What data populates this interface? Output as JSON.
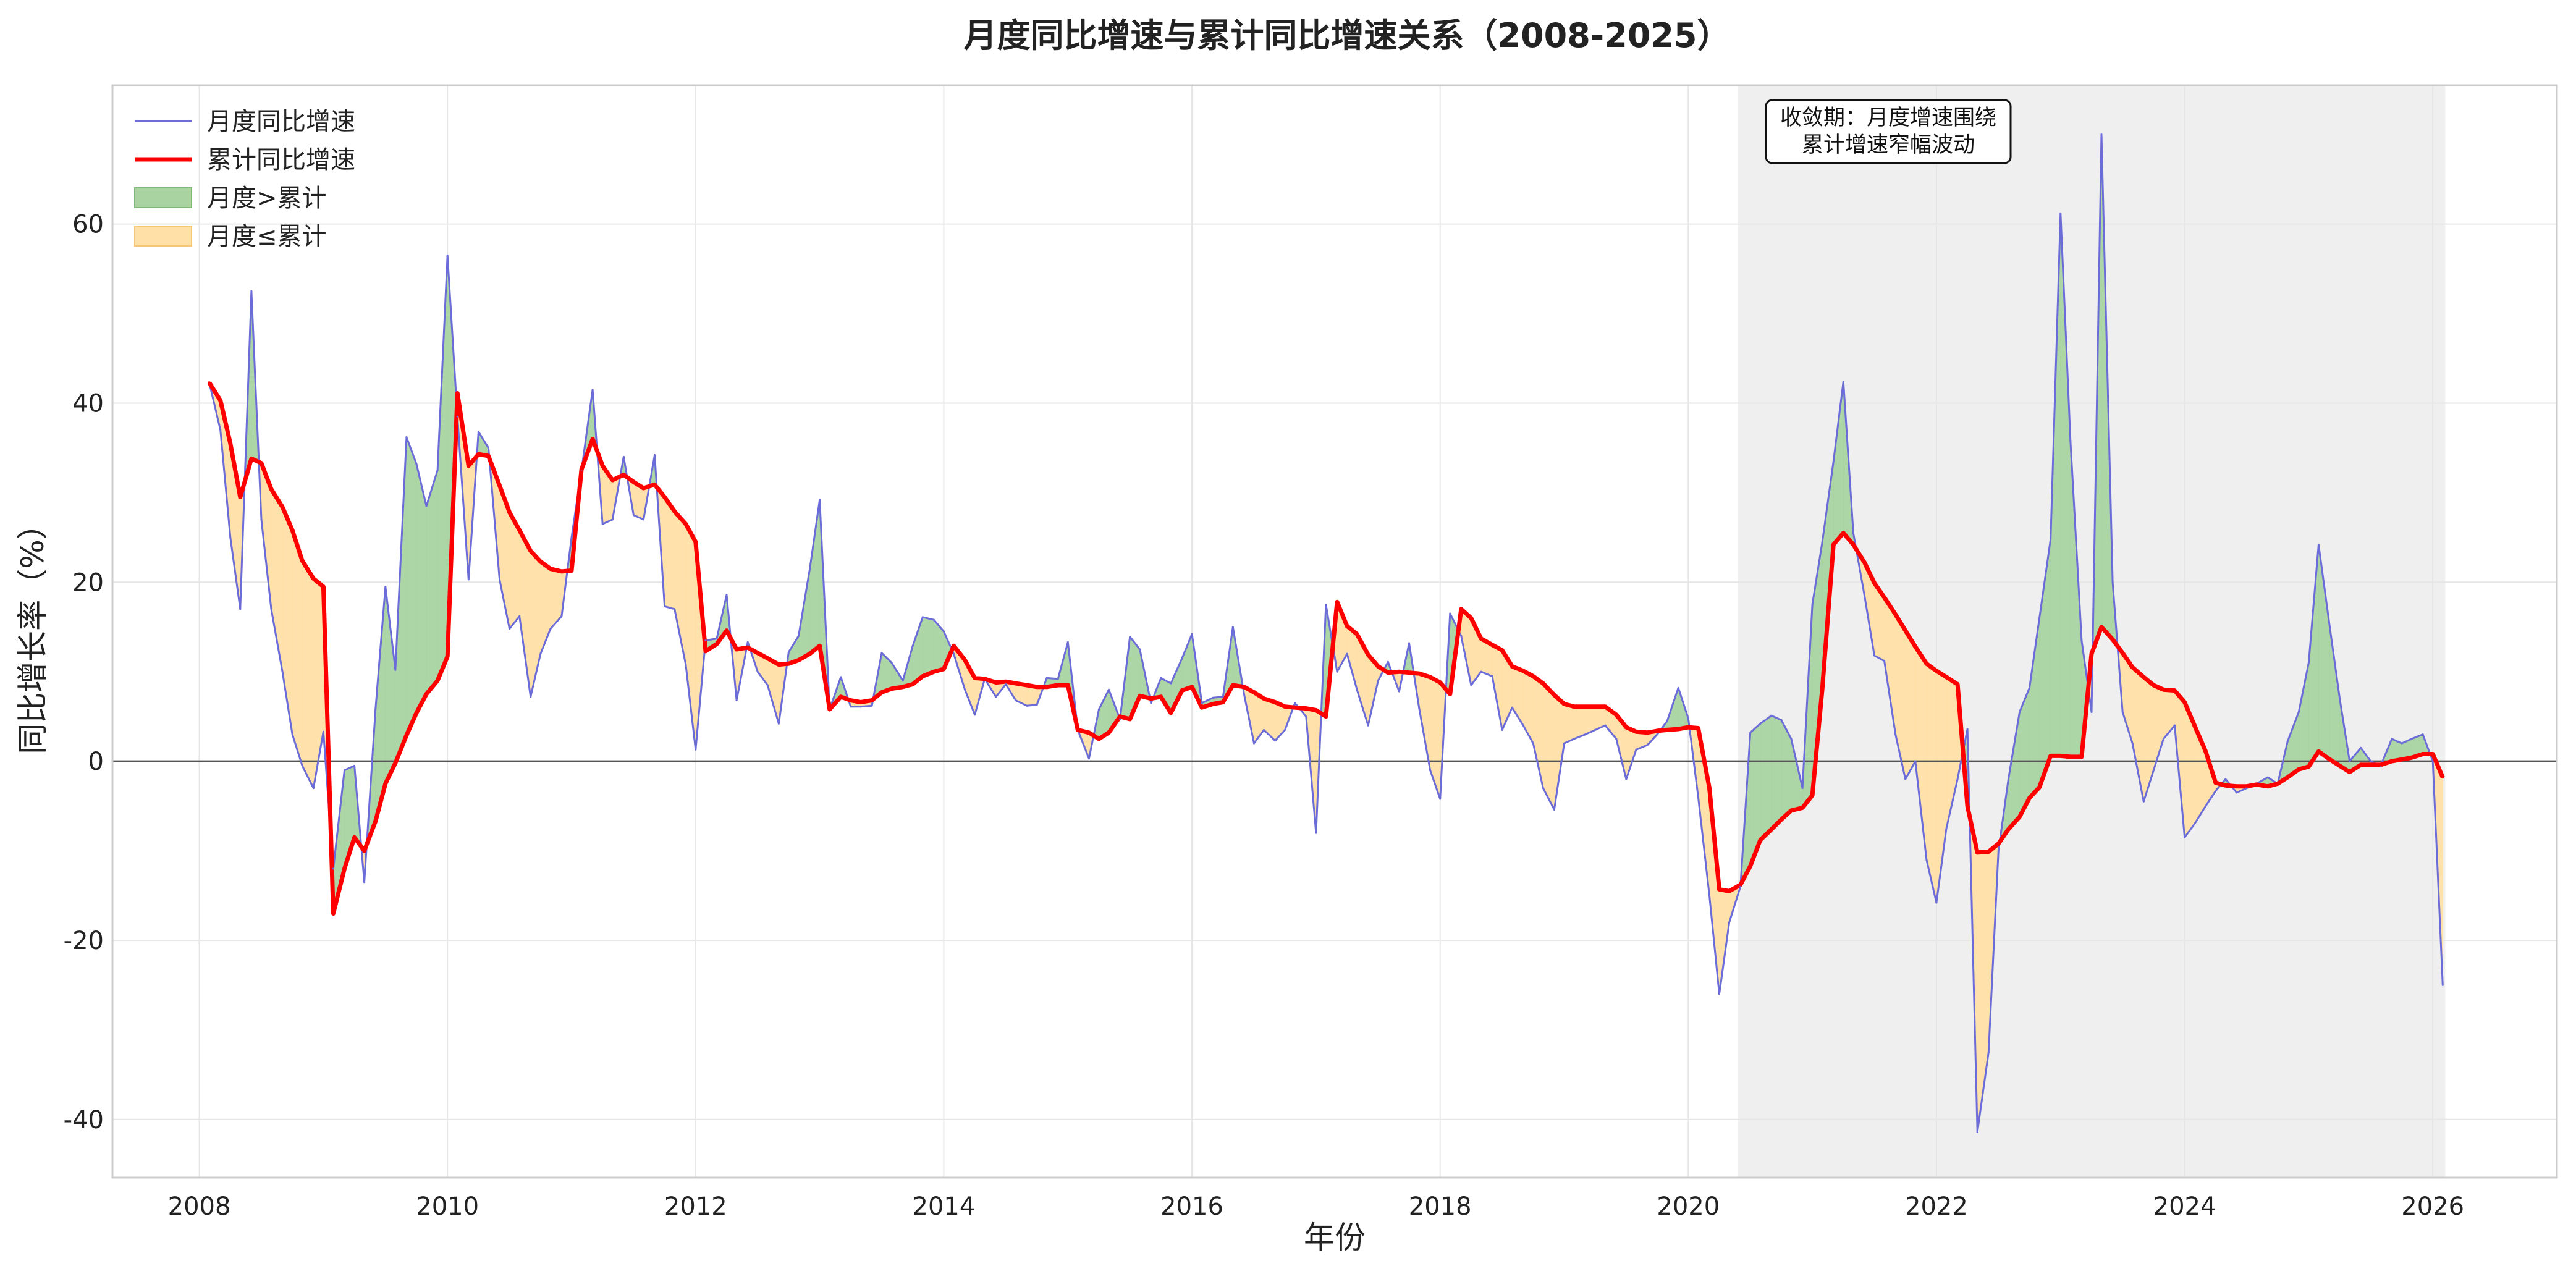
{
  "chart_data": {
    "type": "line",
    "title": "月度同比增速与累计同比增速关系（2008-2025）",
    "xlabel": "年份",
    "ylabel": "同比增长率（%）",
    "xlim": [
      2007.3,
      2027.0
    ],
    "ylim": [
      -46.5,
      75.5
    ],
    "x_ticks": [
      2008,
      2010,
      2012,
      2014,
      2016,
      2018,
      2020,
      2022,
      2024,
      2026
    ],
    "y_ticks": [
      -40,
      -20,
      0,
      20,
      40,
      60
    ],
    "grid": true,
    "legend_position": "top-left",
    "legend": [
      {
        "label": "月度同比增速",
        "kind": "line",
        "color": "#6c6cd9"
      },
      {
        "label": "累计同比增速",
        "kind": "line",
        "color": "#ff0000"
      },
      {
        "label": "月度>累计",
        "kind": "patch",
        "color": "#a9d4a2"
      },
      {
        "label": "月度≤累计",
        "kind": "patch",
        "color": "#ffe0a6"
      }
    ],
    "highlight_span": {
      "x_start": 2020.4,
      "x_end": 2026.1,
      "color": "#efefef"
    },
    "annotation": {
      "lines": [
        "收敛期：月度增速围绕",
        "累计增速窄幅波动"
      ],
      "x": 2023.3,
      "y": 70.5
    },
    "zero_line": 0,
    "series": [
      {
        "name": "月度同比增速",
        "color": "#6c6cd9",
        "x": [
          2008.08,
          2008.17,
          2008.25,
          2008.33,
          2008.42,
          2008.5,
          2008.58,
          2008.67,
          2008.75,
          2008.83,
          2008.92,
          2009.0,
          2009.08,
          2009.17,
          2009.25,
          2009.33,
          2009.42,
          2009.5,
          2009.58,
          2009.67,
          2009.75,
          2009.83,
          2009.92,
          2010.0,
          2010.08,
          2010.17,
          2010.25,
          2010.33,
          2010.42,
          2010.5,
          2010.58,
          2010.67,
          2010.75,
          2010.83,
          2010.92,
          2011.0,
          2011.08,
          2011.17,
          2011.25,
          2011.33,
          2011.42,
          2011.5,
          2011.58,
          2011.67,
          2011.75,
          2011.83,
          2011.92,
          2012.0,
          2012.08,
          2012.17,
          2012.25,
          2012.33,
          2012.42,
          2012.5,
          2012.58,
          2012.67,
          2012.75,
          2012.83,
          2012.92,
          2013.0,
          2013.08,
          2013.17,
          2013.25,
          2013.33,
          2013.42,
          2013.5,
          2013.58,
          2013.67,
          2013.75,
          2013.83,
          2013.92,
          2014.0,
          2014.08,
          2014.17,
          2014.25,
          2014.33,
          2014.42,
          2014.5,
          2014.58,
          2014.67,
          2014.75,
          2014.83,
          2014.92,
          2015.0,
          2015.08,
          2015.17,
          2015.25,
          2015.33,
          2015.42,
          2015.5,
          2015.58,
          2015.67,
          2015.75,
          2015.83,
          2015.92,
          2016.0,
          2016.08,
          2016.17,
          2016.25,
          2016.33,
          2016.42,
          2016.5,
          2016.58,
          2016.67,
          2016.75,
          2016.83,
          2016.92,
          2017.0,
          2017.08,
          2017.17,
          2017.25,
          2017.33,
          2017.42,
          2017.5,
          2017.58,
          2017.67,
          2017.75,
          2017.83,
          2017.92,
          2018.0,
          2018.08,
          2018.17,
          2018.25,
          2018.33,
          2018.42,
          2018.5,
          2018.58,
          2018.67,
          2018.75,
          2018.83,
          2018.92,
          2019.0,
          2019.08,
          2019.17,
          2019.25,
          2019.33,
          2019.42,
          2019.5,
          2019.58,
          2019.67,
          2019.75,
          2019.83,
          2019.92,
          2020.0,
          2020.08,
          2020.17,
          2020.25,
          2020.33,
          2020.42,
          2020.5,
          2020.58,
          2020.67,
          2020.75,
          2020.83,
          2020.92,
          2021.0,
          2021.08,
          2021.17,
          2021.25,
          2021.33,
          2021.42,
          2021.5,
          2021.58,
          2021.67,
          2021.75,
          2021.83,
          2021.92,
          2022.0,
          2022.08,
          2022.17,
          2022.25,
          2022.33,
          2022.42,
          2022.5,
          2022.58,
          2022.67,
          2022.75,
          2022.83,
          2022.92,
          2023.0,
          2023.08,
          2023.17,
          2023.25,
          2023.33,
          2023.42,
          2023.5,
          2023.58,
          2023.67,
          2023.75,
          2023.83,
          2023.92,
          2024.0,
          2024.08,
          2024.17,
          2024.25,
          2024.33,
          2024.42,
          2024.5,
          2024.58,
          2024.67,
          2024.75,
          2024.83,
          2024.92,
          2025.0,
          2025.08,
          2025.17,
          2025.25,
          2025.33,
          2025.42,
          2025.5,
          2025.58,
          2025.67,
          2025.75,
          2025.83,
          2025.92,
          2026.0,
          2026.08
        ],
        "values": [
          42.3,
          37,
          25,
          17,
          52.5,
          27,
          17,
          10,
          3,
          -0.5,
          -3,
          3.3,
          -12,
          -1,
          -0.5,
          -13.5,
          5.8,
          19.5,
          10.2,
          36.2,
          33.2,
          28.5,
          32.5,
          56.5,
          38.5,
          20.3,
          36.8,
          35,
          20.3,
          14.8,
          16.2,
          7.2,
          12,
          14.8,
          16.2,
          25,
          32.5,
          41.5,
          26.5,
          27,
          34,
          27.5,
          27,
          34.2,
          17.3,
          17,
          10.8,
          1.3,
          13.5,
          13.7,
          18.6,
          6.8,
          13.3,
          10,
          8.5,
          4.2,
          12.2,
          14,
          21.5,
          29.2,
          5.8,
          9.4,
          6.1,
          6.1,
          6.2,
          12.1,
          11,
          9,
          12.9,
          16.1,
          15.8,
          14.5,
          12,
          8,
          5.2,
          9.2,
          7.2,
          8.6,
          6.8,
          6.2,
          6.3,
          9.3,
          9.2,
          13.3,
          3.5,
          0.3,
          5.8,
          8,
          4.7,
          13.9,
          12.5,
          6.5,
          9.3,
          8.7,
          11.5,
          14.2,
          6.5,
          7.1,
          7.2,
          15,
          7.5,
          2,
          3.5,
          2.3,
          3.5,
          6.5,
          5,
          -8,
          17.5,
          10,
          12,
          8,
          4,
          9,
          11.1,
          7.8,
          13.2,
          6,
          -1,
          -4.2,
          16.5,
          14,
          8.5,
          10,
          9.5,
          3.5,
          6,
          4,
          2,
          -3,
          -5.4,
          2,
          2.5,
          3,
          3.5,
          4,
          2.5,
          -2,
          1.3,
          1.8,
          3,
          4.5,
          8.2,
          4.8,
          -4,
          -15,
          -26,
          -18,
          -14,
          3.2,
          4.2,
          5.1,
          4.6,
          2.5,
          -3,
          17.5,
          24.5,
          33.5,
          42.4,
          25.5,
          18.5,
          11.8,
          11.2,
          3,
          -2,
          0,
          -11,
          -15.8,
          -7.5,
          -2,
          3.6,
          -41.4,
          -32.5,
          -10,
          -2,
          5.5,
          8.2,
          16,
          24.8,
          61.2,
          35.8,
          13.5,
          5.5,
          70,
          20,
          5.5,
          2,
          -4.5,
          -1,
          2.5,
          4,
          -8.5,
          -7,
          -5,
          -3.3,
          -2,
          -3.5,
          -3,
          -2.5,
          -1.8,
          -2.5,
          2.2,
          5.5,
          11,
          24.2,
          15,
          7,
          0,
          1.5,
          0,
          -0.5,
          2.5,
          2,
          2.5,
          3,
          0,
          -25
        ]
      },
      {
        "name": "累计同比增速",
        "color": "#ff0000",
        "x": [
          2008.08,
          2008.17,
          2008.25,
          2008.33,
          2008.42,
          2008.5,
          2008.58,
          2008.67,
          2008.75,
          2008.83,
          2008.92,
          2009.0,
          2009.08,
          2009.17,
          2009.25,
          2009.33,
          2009.42,
          2009.5,
          2009.58,
          2009.67,
          2009.75,
          2009.83,
          2009.92,
          2010.0,
          2010.08,
          2010.17,
          2010.25,
          2010.33,
          2010.42,
          2010.5,
          2010.58,
          2010.67,
          2010.75,
          2010.83,
          2010.92,
          2011.0,
          2011.08,
          2011.17,
          2011.25,
          2011.33,
          2011.42,
          2011.5,
          2011.58,
          2011.67,
          2011.75,
          2011.83,
          2011.92,
          2012.0,
          2012.08,
          2012.17,
          2012.25,
          2012.33,
          2012.42,
          2012.5,
          2012.58,
          2012.67,
          2012.75,
          2012.83,
          2012.92,
          2013.0,
          2013.08,
          2013.17,
          2013.25,
          2013.33,
          2013.42,
          2013.5,
          2013.58,
          2013.67,
          2013.75,
          2013.83,
          2013.92,
          2014.0,
          2014.08,
          2014.17,
          2014.25,
          2014.33,
          2014.42,
          2014.5,
          2014.58,
          2014.67,
          2014.75,
          2014.83,
          2014.92,
          2015.0,
          2015.08,
          2015.17,
          2015.25,
          2015.33,
          2015.42,
          2015.5,
          2015.58,
          2015.67,
          2015.75,
          2015.83,
          2015.92,
          2016.0,
          2016.08,
          2016.17,
          2016.25,
          2016.33,
          2016.42,
          2016.5,
          2016.58,
          2016.67,
          2016.75,
          2016.83,
          2016.92,
          2017.0,
          2017.08,
          2017.17,
          2017.25,
          2017.33,
          2017.42,
          2017.5,
          2017.58,
          2017.67,
          2017.75,
          2017.83,
          2017.92,
          2018.0,
          2018.08,
          2018.17,
          2018.25,
          2018.33,
          2018.42,
          2018.5,
          2018.58,
          2018.67,
          2018.75,
          2018.83,
          2018.92,
          2019.0,
          2019.08,
          2019.17,
          2019.25,
          2019.33,
          2019.42,
          2019.5,
          2019.58,
          2019.67,
          2019.75,
          2019.83,
          2019.92,
          2020.0,
          2020.08,
          2020.17,
          2020.25,
          2020.33,
          2020.42,
          2020.5,
          2020.58,
          2020.67,
          2020.75,
          2020.83,
          2020.92,
          2021.0,
          2021.08,
          2021.17,
          2021.25,
          2021.33,
          2021.42,
          2021.5,
          2021.58,
          2021.67,
          2021.75,
          2021.83,
          2021.92,
          2022.0,
          2022.08,
          2022.17,
          2022.25,
          2022.33,
          2022.42,
          2022.5,
          2022.58,
          2022.67,
          2022.75,
          2022.83,
          2022.92,
          2023.0,
          2023.08,
          2023.17,
          2023.25,
          2023.33,
          2023.42,
          2023.5,
          2023.58,
          2023.67,
          2023.75,
          2023.83,
          2023.92,
          2024.0,
          2024.08,
          2024.17,
          2024.25,
          2024.33,
          2024.42,
          2024.5,
          2024.58,
          2024.67,
          2024.75,
          2024.83,
          2024.92,
          2025.0,
          2025.08,
          2025.17,
          2025.25,
          2025.33,
          2025.42,
          2025.5,
          2025.58,
          2025.67,
          2025.75,
          2025.83,
          2025.92,
          2026.0,
          2026.08
        ],
        "values": [
          42.3,
          40.3,
          35.5,
          29.5,
          33.8,
          33.3,
          30.4,
          28.4,
          25.8,
          22.4,
          20.4,
          19.5,
          -17,
          -12,
          -8.5,
          -10,
          -6.7,
          -2.5,
          -0.2,
          2.9,
          5.4,
          7.5,
          9,
          11.7,
          41.1,
          33,
          34.3,
          34.1,
          30.8,
          27.8,
          25.8,
          23.5,
          22.3,
          21.5,
          21.2,
          21.3,
          32.6,
          36,
          33,
          31.4,
          32,
          31.2,
          30.5,
          30.9,
          29.5,
          27.9,
          26.5,
          24.5,
          12.3,
          13.1,
          14.6,
          12.5,
          12.7,
          12.1,
          11.5,
          10.8,
          10.9,
          11.3,
          12,
          12.9,
          5.8,
          7.2,
          6.8,
          6.6,
          6.8,
          7.7,
          8.1,
          8.3,
          8.6,
          9.5,
          10,
          10.3,
          12.9,
          11.3,
          9.3,
          9.2,
          8.8,
          8.9,
          8.7,
          8.5,
          8.3,
          8.3,
          8.5,
          8.5,
          3.5,
          3.2,
          2.5,
          3.2,
          5,
          4.7,
          7.3,
          7,
          7.2,
          5.4,
          7.9,
          8.3,
          6,
          6.4,
          6.6,
          8.5,
          8.3,
          7.7,
          7,
          6.6,
          6.1,
          6,
          5.9,
          5.7,
          5,
          17.8,
          15.1,
          14.2,
          11.9,
          10.6,
          9.9,
          10,
          9.9,
          9.8,
          9.4,
          8.8,
          7.5,
          17,
          16,
          13.7,
          13,
          12.4,
          10.6,
          10.1,
          9.5,
          8.7,
          7.4,
          6.4,
          6.1,
          6.1,
          6.1,
          6.1,
          5.2,
          3.8,
          3.3,
          3.2,
          3.4,
          3.5,
          3.6,
          3.8,
          3.7,
          -3,
          -14.3,
          -14.5,
          -13.8,
          -11.7,
          -8.8,
          -7.6,
          -6.5,
          -5.5,
          -5.2,
          -3.8,
          8.1,
          24.2,
          25.5,
          24.2,
          22.2,
          19.9,
          18.3,
          16.4,
          14.6,
          12.8,
          10.9,
          10.1,
          9.4,
          8.6,
          -5,
          -10.2,
          -10.1,
          -9.2,
          -7.6,
          -6.2,
          -4.1,
          -2.9,
          0.6,
          0.6,
          0.5,
          0.5,
          12,
          15,
          13.6,
          12.1,
          10.5,
          9.4,
          8.5,
          8,
          7.9,
          6.6,
          4,
          1.1,
          -2.4,
          -2.7,
          -2.8,
          -2.8,
          -2.6,
          -2.8,
          -2.5,
          -1.8,
          -0.9,
          -0.6,
          1.1,
          0.2,
          -0.5,
          -1.2,
          -0.4,
          -0.4,
          -0.4,
          0,
          0.2,
          0.4,
          0.8,
          0.8,
          -1.8
        ]
      }
    ]
  }
}
